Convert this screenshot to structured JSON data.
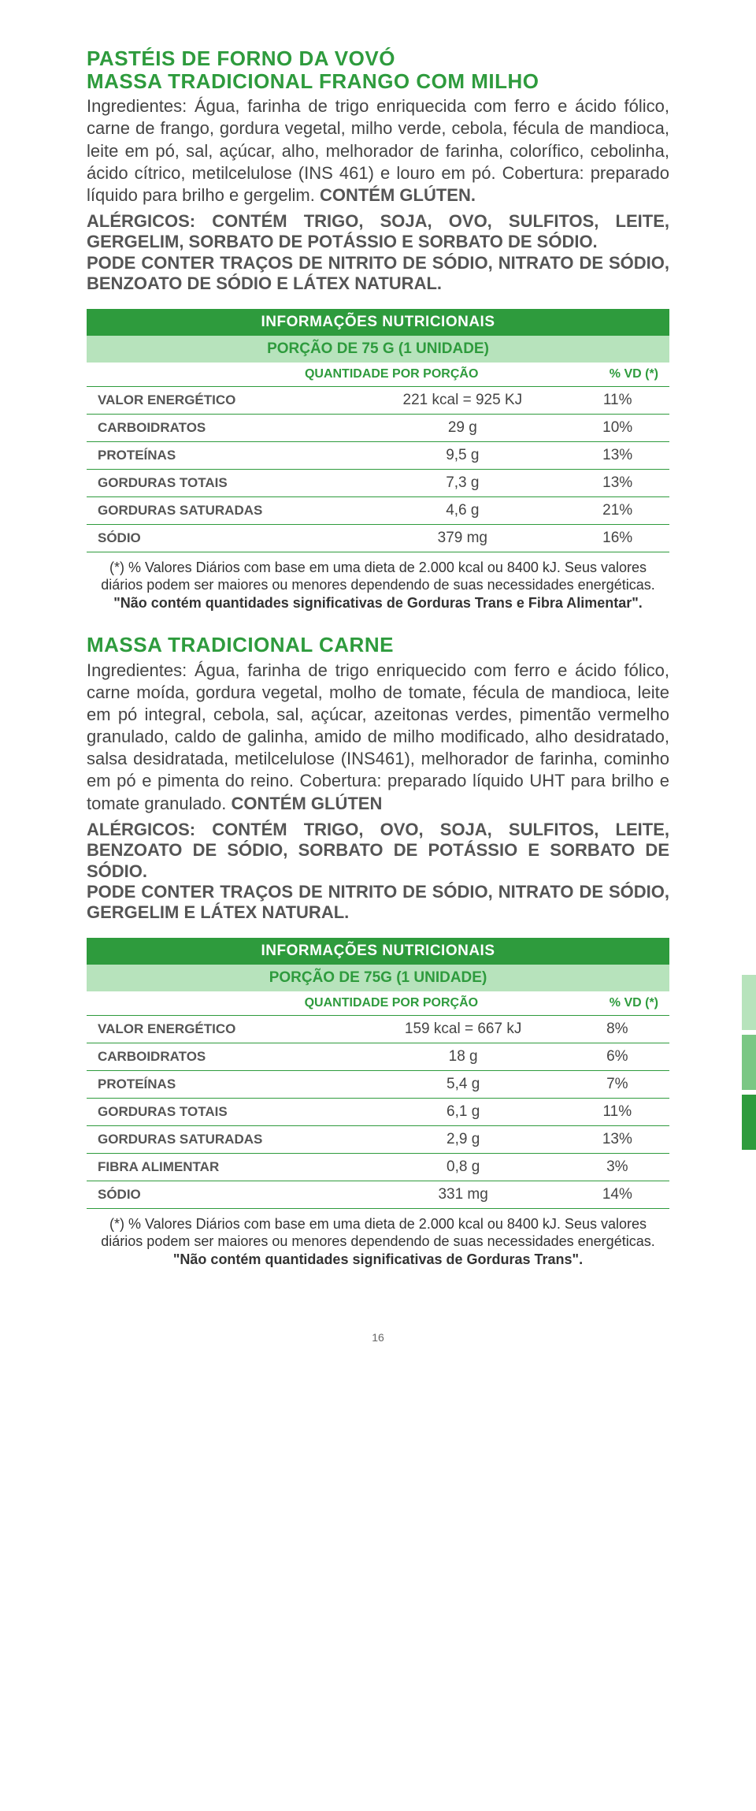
{
  "main_title": "PASTÉIS DE FORNO DA VOVÓ",
  "product1": {
    "title": "MASSA TRADICIONAL FRANGO COM MILHO",
    "ingredients": "Ingredientes: Água, farinha de trigo enriquecida com ferro e ácido fólico, carne de frango, gordura vegetal, milho verde, cebola, fécula de mandioca, leite em pó, sal, açúcar, alho, melhorador de farinha, colorífico, cebolinha, ácido cítrico, metilcelulose (INS 461) e louro em pó. Cobertura: preparado líquido para brilho e gergelim. ",
    "gluten": "CONTÉM GLÚTEN.",
    "allergen": "ALÉRGICOS: CONTÉM TRIGO, SOJA, OVO, SULFITOS, LEITE, GERGELIM, SORBATO DE POTÁSSIO E SORBATO DE SÓDIO.\nPODE CONTER TRAÇOS DE NITRITO DE SÓDIO, NITRATO DE SÓDIO, BENZOATO DE SÓDIO E LÁTEX NATURAL.",
    "table": {
      "header": "INFORMAÇÕES NUTRICIONAIS",
      "portion": "PORÇÃO DE 75 G (1 UNIDADE)",
      "col_qty": "QUANTIDADE POR PORÇÃO",
      "col_vd": "% VD (*)",
      "rows": [
        {
          "label": "VALOR ENERGÉTICO",
          "qty": "221 kcal = 925 KJ",
          "vd": "11%"
        },
        {
          "label": "CARBOIDRATOS",
          "qty": "29 g",
          "vd": "10%"
        },
        {
          "label": "PROTEÍNAS",
          "qty": "9,5 g",
          "vd": "13%"
        },
        {
          "label": "GORDURAS TOTAIS",
          "qty": "7,3 g",
          "vd": "13%"
        },
        {
          "label": "GORDURAS SATURADAS",
          "qty": "4,6 g",
          "vd": "21%"
        },
        {
          "label": "SÓDIO",
          "qty": "379 mg",
          "vd": "16%"
        }
      ]
    },
    "footnote1": "(*) % Valores Diários com base em uma dieta de 2.000 kcal ou 8400 kJ. Seus valores diários podem ser maiores ou menores dependendo de suas necessidades energéticas.",
    "footnote2": "\"Não contém quantidades significativas de Gorduras Trans e Fibra Alimentar\"."
  },
  "product2": {
    "title": "MASSA TRADICIONAL CARNE",
    "ingredients": "Ingredientes: Água, farinha de trigo enriquecido com ferro e ácido fólico, carne moída, gordura vegetal, molho de tomate, fécula de mandioca, leite em pó integral, cebola, sal, açúcar, azeitonas verdes, pimentão vermelho granulado, caldo de galinha, amido de milho modificado, alho desidratado, salsa desidratada, metilcelulose (INS461), melhorador de farinha, cominho em pó e pimenta do reino. Cobertura: preparado líquido UHT para brilho e tomate granulado. ",
    "gluten": "CONTÉM GLÚTEN",
    "allergen": "ALÉRGICOS: CONTÉM TRIGO, OVO, SOJA, SULFITOS, LEITE, BENZOATO DE SÓDIO, SORBATO DE POTÁSSIO E SORBATO DE SÓDIO.\nPODE CONTER TRAÇOS DE NITRITO DE SÓDIO, NITRATO DE SÓDIO, GERGELIM E LÁTEX NATURAL.",
    "table": {
      "header": "INFORMAÇÕES NUTRICIONAIS",
      "portion": "PORÇÃO DE 75G (1 UNIDADE)",
      "col_qty": "QUANTIDADE POR PORÇÃO",
      "col_vd": "% VD (*)",
      "rows": [
        {
          "label": "VALOR ENERGÉTICO",
          "qty": "159 kcal = 667 kJ",
          "vd": "8%"
        },
        {
          "label": "CARBOIDRATOS",
          "qty": "18 g",
          "vd": "6%"
        },
        {
          "label": "PROTEÍNAS",
          "qty": "5,4 g",
          "vd": "7%"
        },
        {
          "label": "GORDURAS TOTAIS",
          "qty": "6,1 g",
          "vd": "11%"
        },
        {
          "label": "GORDURAS SATURADAS",
          "qty": "2,9 g",
          "vd": "13%"
        },
        {
          "label": "FIBRA ALIMENTAR",
          "qty": "0,8 g",
          "vd": "3%"
        },
        {
          "label": "SÓDIO",
          "qty": "331 mg",
          "vd": "14%"
        }
      ]
    },
    "footnote1": "(*) % Valores Diários com base em uma dieta de 2.000 kcal ou 8400 kJ. Seus valores diários podem ser maiores ou menores dependendo de suas necessidades energéticas.",
    "footnote2": "\"Não contém quantidades significativas de Gorduras Trans\"."
  },
  "page_number": "16",
  "colors": {
    "brand_green": "#2e9b3d",
    "light_green": "#b7e3bc",
    "mid_green": "#7ac784",
    "text": "#444",
    "bold_text": "#555"
  }
}
